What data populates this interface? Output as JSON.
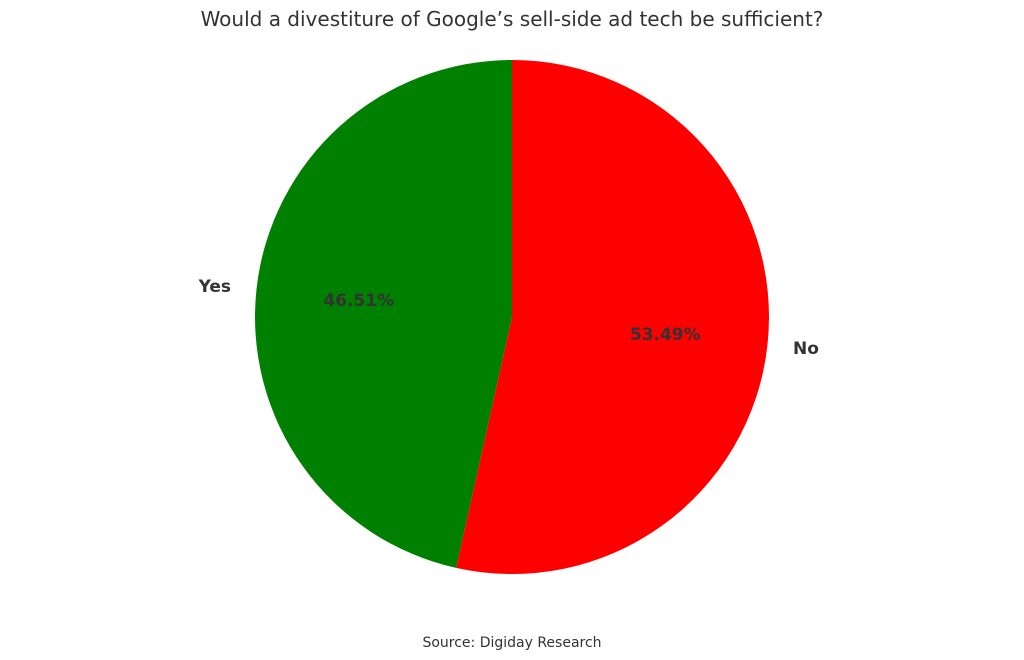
{
  "chart_data": {
    "type": "pie",
    "title": "Would a divestiture of Google’s sell-side ad tech be sufficient?",
    "categories": [
      "No",
      "Yes"
    ],
    "values": [
      53.49,
      46.51
    ],
    "value_labels": [
      "53.49%",
      "46.51%"
    ],
    "colors": [
      "#ff0000",
      "#008000"
    ],
    "start": "top",
    "direction": "clockwise",
    "source": "Source: Digiday Research"
  }
}
